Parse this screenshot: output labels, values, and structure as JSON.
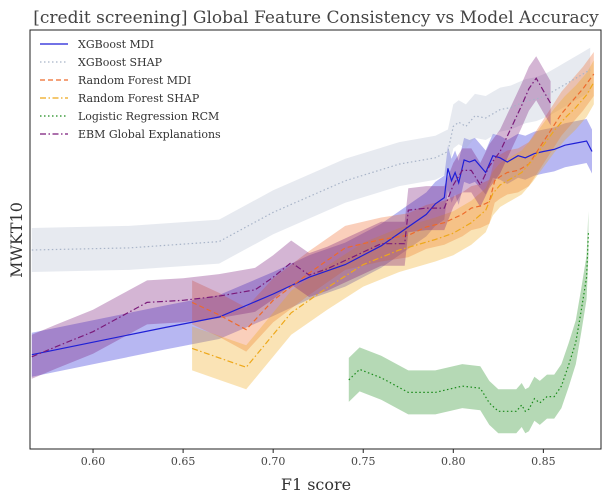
{
  "chart_data": {
    "type": "line",
    "title": "[credit screening] Global Feature Consistency vs Model Accuracy",
    "xlabel": "F1 score",
    "ylabel": "MWKT10",
    "xlim": [
      0.565,
      0.882
    ],
    "ylim": [
      0.0,
      1.0
    ],
    "x_ticks": [
      0.6,
      0.65,
      0.7,
      0.75,
      0.8,
      0.85
    ],
    "x_tick_labels": [
      "0.60",
      "0.65",
      "0.70",
      "0.75",
      "0.80",
      "0.85"
    ],
    "grid": false,
    "legend_position": "top-left",
    "series": [
      {
        "name": "XGBoost MDI",
        "color": "#1f1fd6",
        "dash": "solid",
        "band": true,
        "x": [
          0.566,
          0.6,
          0.64,
          0.67,
          0.7,
          0.72,
          0.74,
          0.76,
          0.775,
          0.785,
          0.79,
          0.795,
          0.797,
          0.799,
          0.801,
          0.803,
          0.806,
          0.809,
          0.812,
          0.818,
          0.822,
          0.826,
          0.83,
          0.836,
          0.84,
          0.845,
          0.85,
          0.856,
          0.862,
          0.868,
          0.874,
          0.877
        ],
        "y": [
          0.225,
          0.255,
          0.29,
          0.315,
          0.37,
          0.41,
          0.44,
          0.485,
          0.53,
          0.56,
          0.585,
          0.6,
          0.67,
          0.64,
          0.66,
          0.635,
          0.69,
          0.685,
          0.69,
          0.66,
          0.7,
          0.695,
          0.685,
          0.7,
          0.695,
          0.705,
          0.71,
          0.715,
          0.725,
          0.73,
          0.735,
          0.71
        ]
      },
      {
        "name": "XGBoost SHAP",
        "color": "#a8b4c8",
        "dash": "dotted",
        "band": true,
        "x": [
          0.566,
          0.62,
          0.67,
          0.7,
          0.74,
          0.77,
          0.79,
          0.797,
          0.8,
          0.803,
          0.807,
          0.812,
          0.818,
          0.822,
          0.826,
          0.832,
          0.84,
          0.846,
          0.852,
          0.858,
          0.864,
          0.87,
          0.876
        ],
        "y": [
          0.475,
          0.48,
          0.495,
          0.565,
          0.64,
          0.68,
          0.695,
          0.71,
          0.77,
          0.78,
          0.77,
          0.795,
          0.79,
          0.8,
          0.81,
          0.815,
          0.83,
          0.835,
          0.845,
          0.86,
          0.875,
          0.89,
          0.905
        ]
      },
      {
        "name": "Random Forest MDI",
        "color": "#ee6a2a",
        "dash": "dashed",
        "band": true,
        "x": [
          0.655,
          0.67,
          0.685,
          0.7,
          0.72,
          0.74,
          0.76,
          0.775,
          0.785,
          0.795,
          0.8,
          0.805,
          0.81,
          0.815,
          0.82,
          0.823,
          0.826,
          0.83,
          0.836,
          0.842,
          0.848,
          0.854,
          0.86,
          0.866,
          0.872,
          0.878
        ],
        "y": [
          0.35,
          0.32,
          0.285,
          0.355,
          0.42,
          0.48,
          0.5,
          0.51,
          0.53,
          0.54,
          0.55,
          0.56,
          0.575,
          0.58,
          0.59,
          0.64,
          0.65,
          0.66,
          0.665,
          0.68,
          0.72,
          0.76,
          0.8,
          0.83,
          0.86,
          0.895
        ]
      },
      {
        "name": "Random Forest SHAP",
        "color": "#eea81a",
        "dash": "dashdot",
        "band": true,
        "x": [
          0.655,
          0.685,
          0.71,
          0.73,
          0.75,
          0.77,
          0.79,
          0.8,
          0.81,
          0.818,
          0.822,
          0.826,
          0.832,
          0.838,
          0.844,
          0.85,
          0.856,
          0.862,
          0.868,
          0.874,
          0.878
        ],
        "y": [
          0.24,
          0.195,
          0.325,
          0.385,
          0.44,
          0.475,
          0.5,
          0.515,
          0.54,
          0.57,
          0.61,
          0.63,
          0.645,
          0.66,
          0.69,
          0.725,
          0.76,
          0.79,
          0.815,
          0.845,
          0.875
        ]
      },
      {
        "name": "Logistic Regression RCM",
        "color": "#1a8a1a",
        "dash": "dotted",
        "band": true,
        "x": [
          0.742,
          0.748,
          0.76,
          0.775,
          0.79,
          0.805,
          0.815,
          0.82,
          0.825,
          0.83,
          0.835,
          0.838,
          0.84,
          0.842,
          0.845,
          0.848,
          0.852,
          0.856,
          0.86,
          0.864,
          0.868,
          0.871,
          0.874,
          0.875
        ],
        "y": [
          0.165,
          0.19,
          0.17,
          0.135,
          0.135,
          0.15,
          0.145,
          0.11,
          0.09,
          0.09,
          0.09,
          0.105,
          0.09,
          0.095,
          0.12,
          0.11,
          0.125,
          0.125,
          0.15,
          0.2,
          0.255,
          0.33,
          0.41,
          0.515
        ]
      },
      {
        "name": "EBM Global Explanations",
        "color": "#7a1a7a",
        "dash": "dashdot",
        "band": true,
        "x": [
          0.566,
          0.58,
          0.6,
          0.615,
          0.63,
          0.65,
          0.67,
          0.69,
          0.7,
          0.71,
          0.72,
          0.73,
          0.745,
          0.76,
          0.773,
          0.775,
          0.785,
          0.795,
          0.8,
          0.805,
          0.81,
          0.815,
          0.82,
          0.826,
          0.832,
          0.838,
          0.842,
          0.846,
          0.85,
          0.854
        ],
        "y": [
          0.22,
          0.245,
          0.28,
          0.315,
          0.35,
          0.355,
          0.365,
          0.38,
          0.41,
          0.445,
          0.415,
          0.43,
          0.46,
          0.49,
          0.49,
          0.57,
          0.575,
          0.575,
          0.63,
          0.665,
          0.665,
          0.63,
          0.675,
          0.71,
          0.765,
          0.82,
          0.86,
          0.885,
          0.855,
          0.825
        ]
      }
    ]
  }
}
